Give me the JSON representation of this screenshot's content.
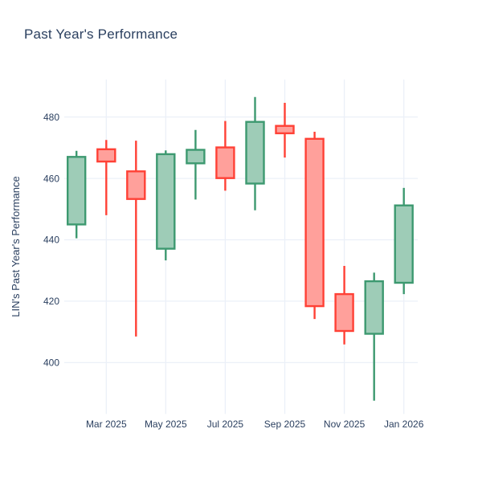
{
  "chart_data": {
    "type": "candlestick",
    "title": "Past Year's Performance",
    "ylabel": "LIN's Past Year's Performance",
    "xlabel": "",
    "x": [
      "Feb 2025",
      "Mar 2025",
      "Apr 2025",
      "May 2025",
      "Jun 2025",
      "Jul 2025",
      "Aug 2025",
      "Sep 2025",
      "Oct 2025",
      "Nov 2025",
      "Dec 2025",
      "Jan 2026"
    ],
    "series": [
      {
        "name": "LIN",
        "open": [
          445.0,
          469.5,
          462.3,
          437.1,
          464.9,
          470.1,
          458.3,
          477.1,
          472.9,
          422.3,
          409.4,
          426.0
        ],
        "high": [
          469.0,
          472.5,
          472.3,
          469.1,
          475.8,
          478.7,
          486.5,
          484.6,
          475.2,
          431.5,
          429.3,
          456.9
        ],
        "low": [
          440.5,
          448.0,
          408.5,
          433.3,
          453.1,
          456.0,
          449.6,
          466.8,
          414.2,
          405.9,
          387.6,
          422.3
        ],
        "close": [
          467.0,
          465.5,
          453.3,
          467.9,
          469.3,
          460.1,
          478.4,
          474.7,
          418.4,
          410.3,
          426.5,
          451.2
        ]
      }
    ],
    "x_tick_labels": [
      "Mar 2025",
      "May 2025",
      "Jul 2025",
      "Sep 2025",
      "Nov 2025",
      "Jan 2026"
    ],
    "x_tick_indices": [
      1,
      3,
      5,
      7,
      9,
      11
    ],
    "y_ticks": [
      400,
      420,
      440,
      460,
      480
    ],
    "ylim": [
      383.3,
      492.2
    ],
    "grid": true,
    "legend": "none",
    "colors": {
      "increasing_line": "#3D9970",
      "increasing_fill": "#9ECCB7",
      "decreasing_line": "#FF4136",
      "decreasing_fill": "#FFA09B",
      "grid": "#EBF0F8",
      "text": "#2A3F5F",
      "background": "#FFFFFF"
    }
  }
}
